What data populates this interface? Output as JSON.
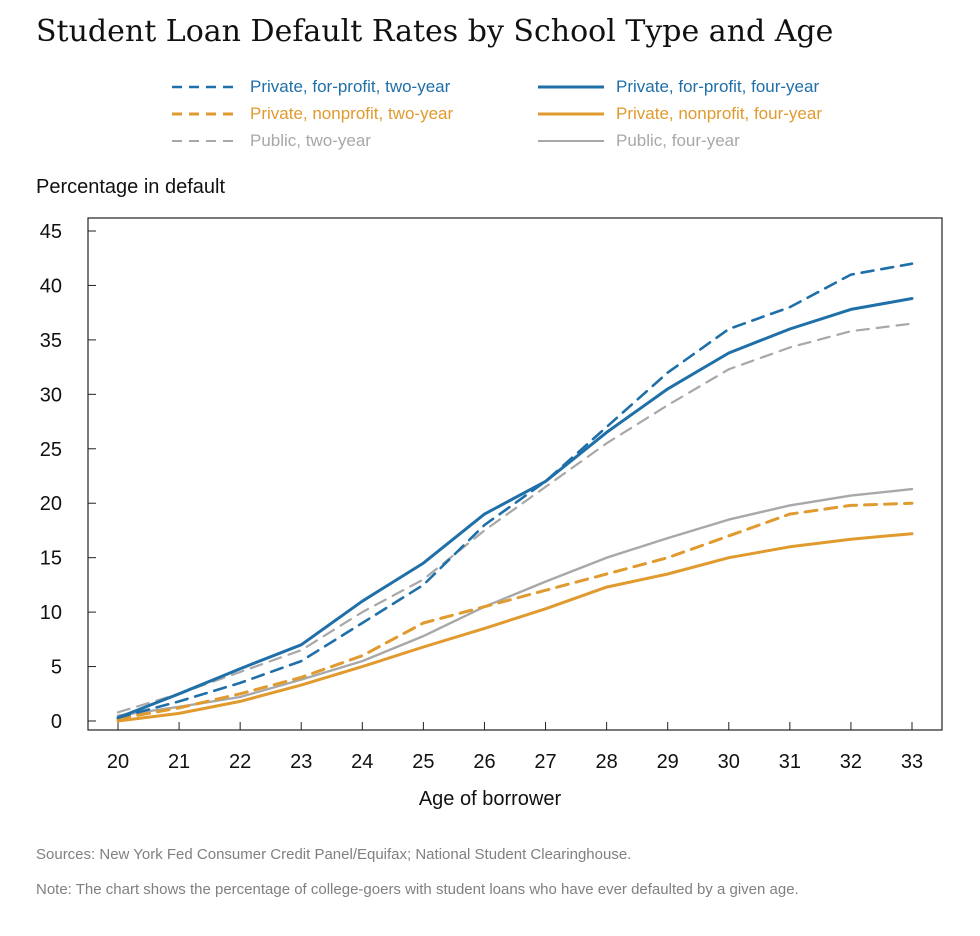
{
  "chart_data": {
    "type": "line",
    "title": "Student Loan Default Rates by School Type and Age",
    "ylabel": "Percentage in default",
    "xlabel": "Age of borrower",
    "x": [
      20,
      21,
      22,
      23,
      24,
      25,
      26,
      27,
      28,
      29,
      30,
      31,
      32,
      33
    ],
    "xlim": [
      20,
      33
    ],
    "ylim": [
      0,
      45
    ],
    "yticks": [
      0,
      5,
      10,
      15,
      20,
      25,
      30,
      35,
      40,
      45
    ],
    "grid": false,
    "legend_position": "top",
    "series": [
      {
        "name": "Private, for-profit, two-year",
        "color": "#1f6fa8",
        "dash": "dashed",
        "values": [
          0.3,
          1.8,
          3.5,
          5.5,
          9.0,
          12.5,
          18.0,
          22.0,
          27.0,
          32.0,
          36.0,
          38.0,
          41.0,
          42.0
        ]
      },
      {
        "name": "Private, for-profit, four-year",
        "color": "#1f6fa8",
        "dash": "solid",
        "values": [
          0.3,
          2.5,
          4.8,
          7.0,
          11.0,
          14.5,
          19.0,
          22.0,
          26.5,
          30.5,
          33.8,
          36.0,
          37.8,
          38.8
        ]
      },
      {
        "name": "Private, nonprofit, two-year",
        "color": "#e09a2e",
        "dash": "dashed",
        "values": [
          0.2,
          1.2,
          2.5,
          4.0,
          6.0,
          9.0,
          10.5,
          12.0,
          13.5,
          15.0,
          17.0,
          19.0,
          19.8,
          20.0
        ]
      },
      {
        "name": "Private, nonprofit, four-year",
        "color": "#e09a2e",
        "dash": "solid",
        "values": [
          0.0,
          0.7,
          1.8,
          3.3,
          5.0,
          6.8,
          8.5,
          10.3,
          12.3,
          13.5,
          15.0,
          16.0,
          16.7,
          17.2
        ]
      },
      {
        "name": "Public, two-year",
        "color": "#a8a8a8",
        "dash": "dashed",
        "values": [
          0.8,
          2.5,
          4.5,
          6.5,
          10.0,
          13.0,
          17.5,
          21.5,
          25.5,
          29.0,
          32.3,
          34.3,
          35.8,
          36.5
        ]
      },
      {
        "name": "Public, four-year",
        "color": "#a8a8a8",
        "dash": "solid",
        "values": [
          0.5,
          1.3,
          2.2,
          3.8,
          5.5,
          7.8,
          10.5,
          12.8,
          15.0,
          16.8,
          18.5,
          19.8,
          20.7,
          21.3
        ]
      }
    ],
    "source": "Sources: New York Fed Consumer Credit Panel/Equifax; National Student Clearinghouse.",
    "note": "Note: The chart shows the percentage of college-goers with student loans who have ever defaulted by a given age."
  }
}
